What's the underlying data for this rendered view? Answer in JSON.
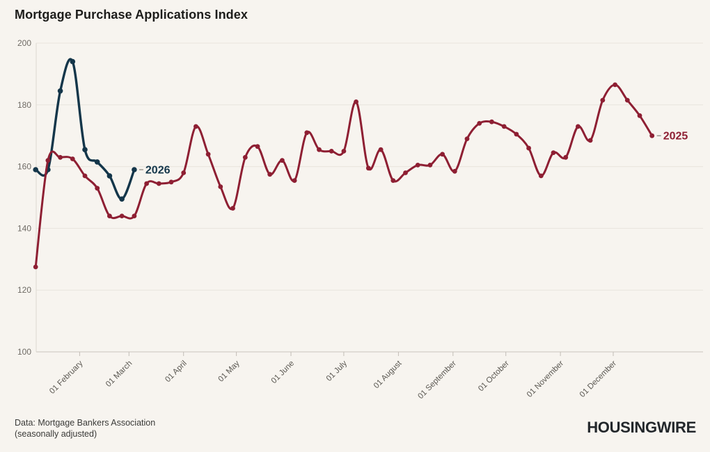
{
  "page": {
    "title": "Mortgage Purchase Applications Index",
    "background_color": "#f7f4ef"
  },
  "footer": {
    "source_line1": "Data: Mortgage Bankers Association",
    "source_line2": "(seasonally adjusted)",
    "logo_text": "HOUSINGWIRE"
  },
  "chart_data": {
    "type": "line",
    "title": "Mortgage Purchase Applications Index",
    "grid": true,
    "x_axis": {
      "tick_labels": [
        "01 February",
        "01 March",
        "01 April",
        "01 May",
        "01 June",
        "01 July",
        "01 August",
        "01 September",
        "01 October",
        "01 November",
        "01 December"
      ],
      "tick_day_of_year": [
        32,
        60,
        91,
        121,
        152,
        182,
        213,
        244,
        274,
        305,
        335
      ]
    },
    "y_axis": {
      "ticks": [
        100,
        120,
        140,
        160,
        180,
        200
      ],
      "range": [
        100,
        200
      ]
    },
    "colors": {
      "grid": "#e8e4dd",
      "axis": "#c9c4bd",
      "tick": "#c2bdb6",
      "leader_dash": "#9b968f"
    },
    "series": [
      {
        "name": "2025",
        "color": "#8e1f33",
        "cadence": "weekly",
        "first_point_day_of_year": 7,
        "values": [
          127.5,
          162,
          163,
          162.5,
          157,
          153,
          144,
          144,
          144,
          154.5,
          154.5,
          155,
          158,
          173,
          164,
          153.5,
          146.5,
          163,
          166.5,
          157.5,
          162,
          155.5,
          171,
          165.5,
          165,
          165,
          181,
          159.5,
          165.5,
          155.5,
          158,
          160.5,
          160.5,
          164,
          158.5,
          169,
          174,
          174.5,
          173,
          170.5,
          166,
          157,
          164.5,
          163,
          173,
          168.5,
          181.5,
          186.5,
          181.5,
          176.5,
          170
        ]
      },
      {
        "name": "2026",
        "color": "#14364a",
        "cadence": "weekly",
        "first_point_day_of_year": 7,
        "values": [
          159,
          159,
          184.5,
          194,
          165.5,
          161.5,
          157,
          149.5,
          159
        ]
      }
    ]
  }
}
